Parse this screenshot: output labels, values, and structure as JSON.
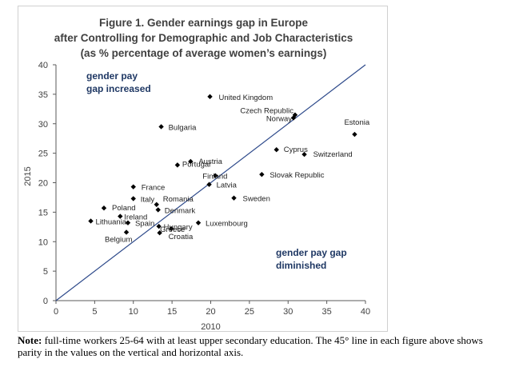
{
  "chart_data": {
    "type": "scatter",
    "title_lines": [
      "Figure 1. Gender earnings gap in Europe",
      "after Controlling for Demographic and Job Characteristics",
      "(as % percentage of average women’s earnings)"
    ],
    "xlabel": "2010",
    "ylabel": "2015",
    "xlim": [
      0,
      40
    ],
    "ylim": [
      0,
      40
    ],
    "xticks": [
      0,
      5,
      10,
      15,
      20,
      25,
      30,
      35,
      40
    ],
    "yticks": [
      0,
      5,
      10,
      15,
      20,
      25,
      30,
      35,
      40
    ],
    "reference_line": "45-degree",
    "points": [
      {
        "label": "United Kingdom",
        "x": 19.9,
        "y": 34.6
      },
      {
        "label": "Czech Republic",
        "x": 30.9,
        "y": 31.5
      },
      {
        "label": "Norway",
        "x": 30.7,
        "y": 31.0
      },
      {
        "label": "Bulgaria",
        "x": 13.6,
        "y": 29.5
      },
      {
        "label": "Estonia",
        "x": 38.6,
        "y": 28.2
      },
      {
        "label": "Cyprus",
        "x": 28.5,
        "y": 25.6
      },
      {
        "label": "Switzerland",
        "x": 32.1,
        "y": 24.8
      },
      {
        "label": "Austria",
        "x": 17.4,
        "y": 23.6
      },
      {
        "label": "Portugal",
        "x": 15.7,
        "y": 23.0
      },
      {
        "label": "Finland",
        "x": 20.6,
        "y": 21.2
      },
      {
        "label": "Slovak Republic",
        "x": 26.6,
        "y": 21.4
      },
      {
        "label": "France",
        "x": 10.0,
        "y": 19.3
      },
      {
        "label": "Latvia",
        "x": 19.8,
        "y": 19.7
      },
      {
        "label": "Italy",
        "x": 10.0,
        "y": 17.3
      },
      {
        "label": "Sweden",
        "x": 23.0,
        "y": 17.4
      },
      {
        "label": "Romania",
        "x": 13.0,
        "y": 16.3
      },
      {
        "label": "Poland",
        "x": 6.2,
        "y": 15.7
      },
      {
        "label": "Denmark",
        "x": 13.2,
        "y": 15.4
      },
      {
        "label": "Ireland",
        "x": 8.3,
        "y": 14.3
      },
      {
        "label": "Lithuania",
        "x": 4.5,
        "y": 13.5
      },
      {
        "label": "Spain",
        "x": 9.3,
        "y": 13.2
      },
      {
        "label": "Luxembourg",
        "x": 18.4,
        "y": 13.2
      },
      {
        "label": "Hungary",
        "x": 13.3,
        "y": 12.6
      },
      {
        "label": "Greece",
        "x": 14.9,
        "y": 12.2
      },
      {
        "label": "Belgium",
        "x": 9.1,
        "y": 11.6
      },
      {
        "label": "Croatia",
        "x": 13.4,
        "y": 11.5
      }
    ],
    "annotations": [
      {
        "lines": [
          "gender pay",
          "gap increased"
        ]
      },
      {
        "lines": [
          "gender pay gap",
          "diminished"
        ]
      }
    ]
  },
  "colors": {
    "text": "#404040",
    "accent": "#1f3864",
    "line": "#2e4a8b",
    "marker": "#000000"
  },
  "note": {
    "label": "Note:",
    "text": " full-time workers 25-64 with at least upper secondary education. The 45° line in each figure above shows parity in the values on the vertical and horizontal axis."
  }
}
